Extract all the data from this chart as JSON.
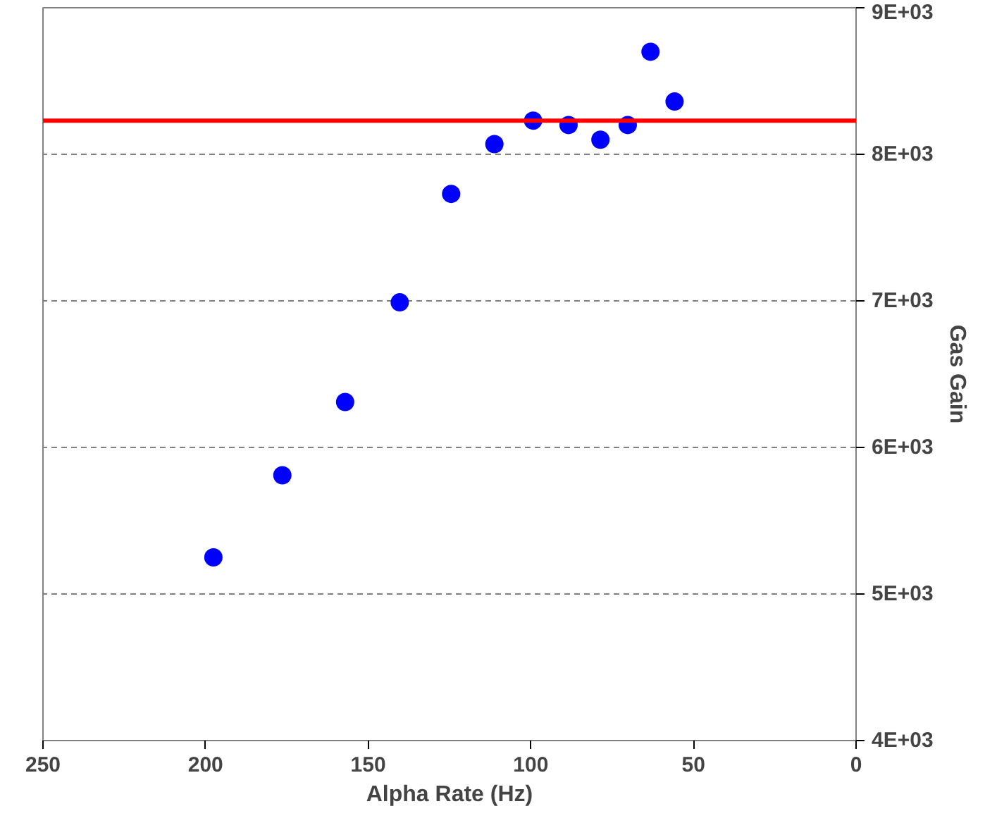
{
  "chart_data": {
    "type": "scatter",
    "xlabel": "Alpha Rate (Hz)",
    "ylabel": "Gas Gain",
    "x": [
      197.6,
      176.4,
      157.1,
      140.3,
      124.5,
      111.2,
      99.3,
      88.4,
      78.6,
      70.2,
      63.2,
      55.8
    ],
    "series": [
      {
        "color": "#0000ff",
        "values": [
          5250,
          5810,
          6310,
          6990,
          7730,
          8070,
          8230,
          8200,
          8100,
          8200,
          8700,
          8360
        ]
      }
    ],
    "xlim": [
      250,
      0
    ],
    "xticks": [
      250,
      200,
      150,
      100,
      50,
      0
    ],
    "ylim": [
      4000,
      9000
    ],
    "yticks": [
      {
        "value": 4000,
        "label": "4E+03"
      },
      {
        "value": 5000,
        "label": "5E+03"
      },
      {
        "value": 6000,
        "label": "6E+03"
      },
      {
        "value": 7000,
        "label": "7E+03"
      },
      {
        "value": 8000,
        "label": "8E+03"
      },
      {
        "value": 9000,
        "label": "9E+03"
      }
    ],
    "ref_lines": [
      {
        "axis": "y",
        "value": 8230,
        "label": null,
        "color": "#ff0000",
        "line_style": "solid"
      }
    ],
    "grid": "y",
    "marker": "circle"
  }
}
